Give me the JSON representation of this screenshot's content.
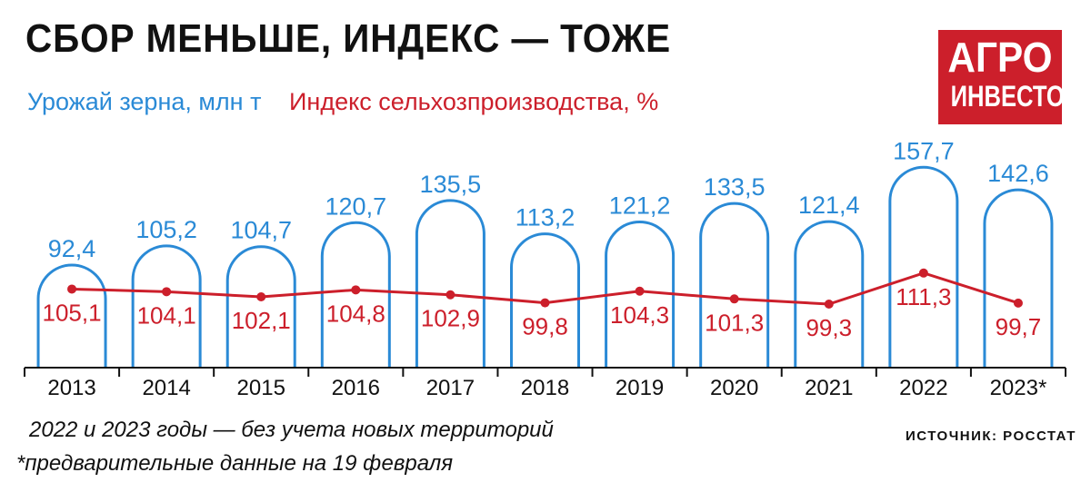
{
  "title": "СБОР МЕНЬШЕ, ИНДЕКС — ТОЖЕ",
  "logo": {
    "line1": "АГРО",
    "line2": "ИНВЕСТОР"
  },
  "colors": {
    "grain": "#2a8ad6",
    "index": "#cc1f2b",
    "axis": "#111111"
  },
  "chart_data": {
    "type": "bar",
    "categories": [
      "2013",
      "2014",
      "2015",
      "2016",
      "2017",
      "2018",
      "2019",
      "2020",
      "2021",
      "2022",
      "2023*"
    ],
    "series": [
      {
        "name": "Урожай зерна, млн т",
        "values": [
          92.4,
          105.2,
          104.7,
          120.7,
          135.5,
          113.2,
          121.2,
          133.5,
          121.4,
          157.7,
          142.6
        ],
        "labels": [
          "92,4",
          "105,2",
          "104,7",
          "120,7",
          "135,5",
          "113,2",
          "121,2",
          "133,5",
          "121,4",
          "157,7",
          "142,6"
        ]
      },
      {
        "name": "Индекс сельхозпроизводства, %",
        "type": "line",
        "values": [
          105.1,
          104.1,
          102.1,
          104.8,
          102.9,
          99.8,
          104.3,
          101.3,
          99.3,
          111.3,
          99.7
        ],
        "labels": [
          "105,1",
          "104,1",
          "102,1",
          "104,8",
          "102,9",
          "99,8",
          "104,3",
          "101,3",
          "99,3",
          "111,3",
          "99,7"
        ]
      }
    ],
    "legend_position": "top-left",
    "grid": false
  },
  "notes": {
    "territories": "2022 и 2023 годы — без учета новых территорий",
    "preliminary": "*предварительные данные на 19 февраля"
  },
  "source": "ИСТОЧНИК: РОССТАТ"
}
